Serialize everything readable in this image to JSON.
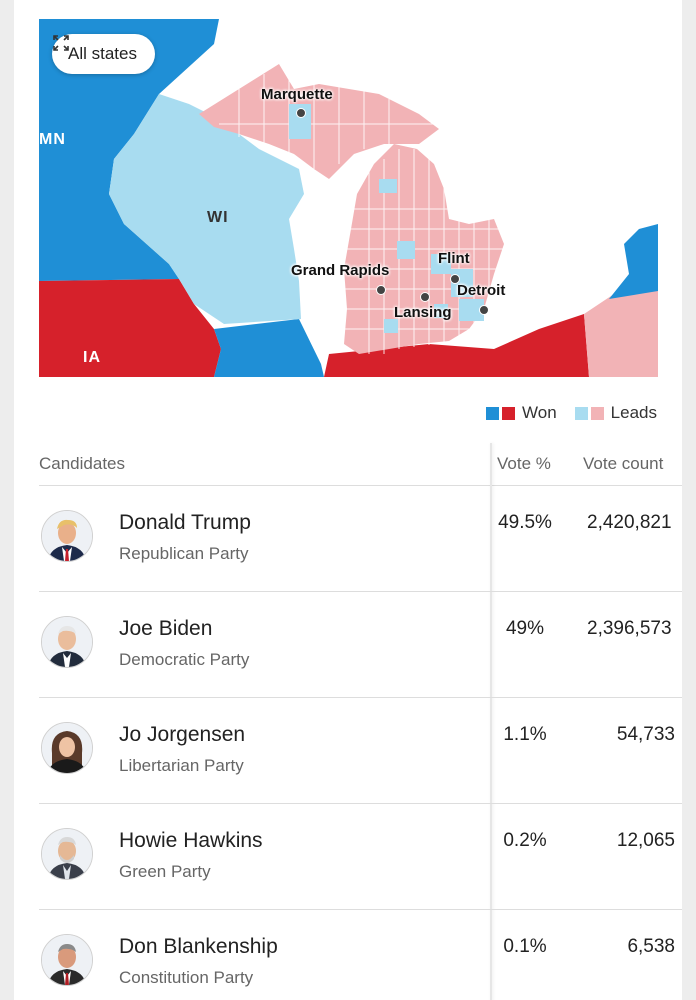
{
  "colors": {
    "dem_won": "#1f8fd6",
    "rep_won": "#d6212b",
    "dem_leads": "#a8dcf0",
    "rep_leads": "#f2b3b6"
  },
  "map": {
    "all_states_label": "All states",
    "all_states_icon": "expand-icon",
    "state_labels": [
      "MN",
      "WI",
      "IA"
    ],
    "cities": [
      "Marquette",
      "Grand Rapids",
      "Flint",
      "Detroit",
      "Lansing"
    ]
  },
  "legend": {
    "won_label": "Won",
    "leads_label": "Leads"
  },
  "table": {
    "headers": [
      "Candidates",
      "Vote %",
      "Vote count"
    ],
    "rows": [
      {
        "name": "Donald Trump",
        "party": "Republican Party",
        "pct": "49.5%",
        "count": "2,420,821"
      },
      {
        "name": "Joe Biden",
        "party": "Democratic Party",
        "pct": "49%",
        "count": "2,396,573"
      },
      {
        "name": "Jo Jorgensen",
        "party": "Libertarian Party",
        "pct": "1.1%",
        "count": "54,733"
      },
      {
        "name": "Howie Hawkins",
        "party": "Green Party",
        "pct": "0.2%",
        "count": "12,065"
      },
      {
        "name": "Don Blankenship",
        "party": "Constitution Party",
        "pct": "0.1%",
        "count": "6,538"
      }
    ]
  }
}
